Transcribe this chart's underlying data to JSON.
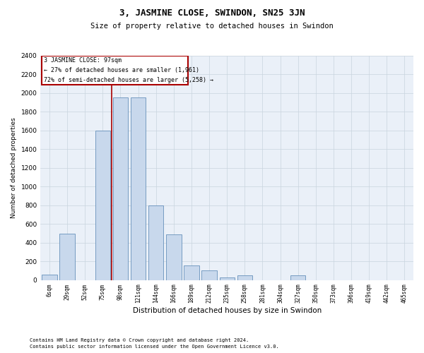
{
  "title": "3, JASMINE CLOSE, SWINDON, SN25 3JN",
  "subtitle": "Size of property relative to detached houses in Swindon",
  "xlabel": "Distribution of detached houses by size in Swindon",
  "ylabel": "Number of detached properties",
  "footer1": "Contains HM Land Registry data © Crown copyright and database right 2024.",
  "footer2": "Contains public sector information licensed under the Open Government Licence v3.0.",
  "annotation_title": "3 JASMINE CLOSE: 97sqm",
  "annotation_line1": "← 27% of detached houses are smaller (1,961)",
  "annotation_line2": "72% of semi-detached houses are larger (5,258) →",
  "bar_color": "#c8d8ec",
  "bar_edge_color": "#5080b0",
  "vline_color": "#aa0000",
  "annotation_box_edgecolor": "#aa0000",
  "grid_color": "#c8d4de",
  "background_color": "#eaf0f8",
  "categories": [
    "6sqm",
    "29sqm",
    "52sqm",
    "75sqm",
    "98sqm",
    "121sqm",
    "144sqm",
    "166sqm",
    "189sqm",
    "212sqm",
    "235sqm",
    "258sqm",
    "281sqm",
    "304sqm",
    "327sqm",
    "350sqm",
    "373sqm",
    "396sqm",
    "419sqm",
    "442sqm",
    "465sqm"
  ],
  "values": [
    60,
    500,
    0,
    1600,
    1950,
    1950,
    800,
    490,
    155,
    105,
    30,
    50,
    0,
    0,
    50,
    0,
    0,
    0,
    0,
    0,
    0
  ],
  "vline_x": 3.5,
  "ylim": [
    0,
    2400
  ],
  "yticks": [
    0,
    200,
    400,
    600,
    800,
    1000,
    1200,
    1400,
    1600,
    1800,
    2000,
    2200,
    2400
  ]
}
